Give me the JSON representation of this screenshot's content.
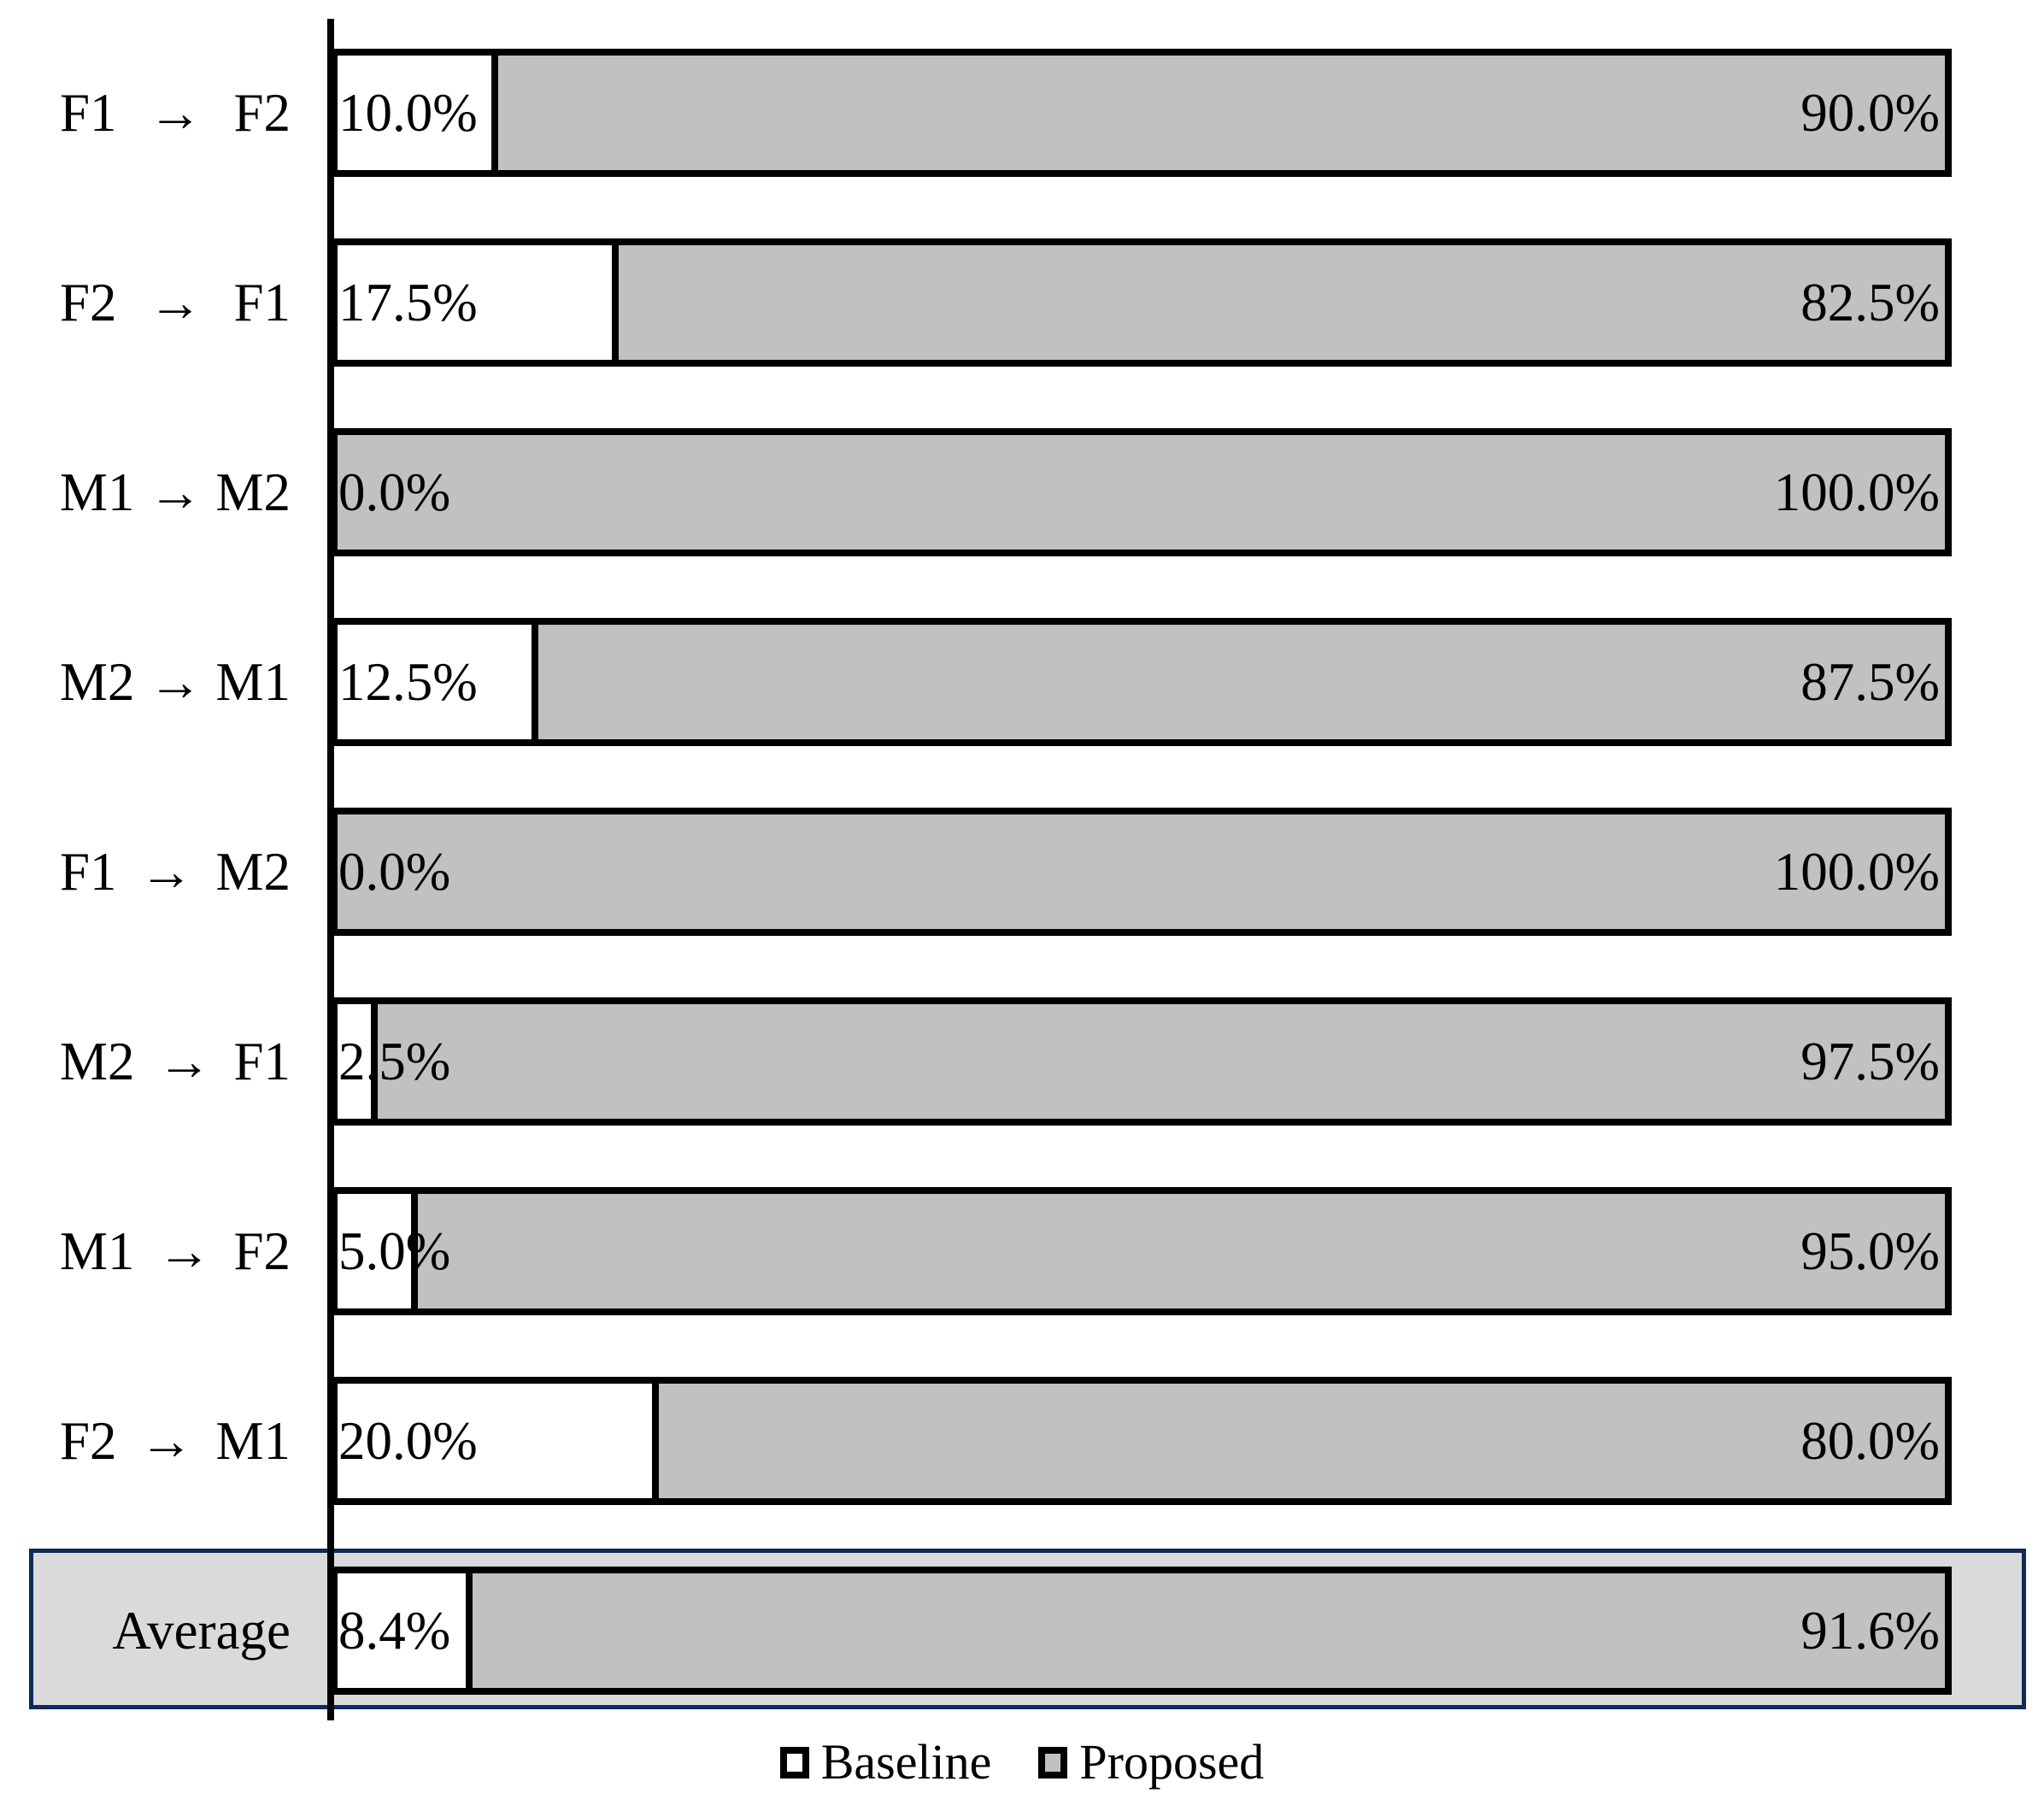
{
  "chart_data": {
    "type": "bar",
    "orientation": "horizontal",
    "stacked": true,
    "value_unit": "percent",
    "xlim": [
      0,
      100
    ],
    "grid": false,
    "legend_position": "bottom",
    "arrow_glyph": "→",
    "categories": [
      "F1 → F2",
      "F2 → F1",
      "M1 → M2",
      "M2 → M1",
      "F1 → M2",
      "M2 → F1",
      "M1 → F2",
      "F2 → M1",
      "Average"
    ],
    "series": [
      {
        "name": "Baseline",
        "color": "#FFFFFF",
        "values": [
          10.0,
          17.5,
          0.0,
          12.5,
          0.0,
          2.5,
          5.0,
          20.0,
          8.4
        ],
        "labels": [
          "10.0%",
          "17.5%",
          "0.0%",
          "12.5%",
          "0.0%",
          "2.5%",
          "5.0%",
          "20.0%",
          "8.4%"
        ]
      },
      {
        "name": "Proposed",
        "color": "#C1C1C1",
        "values": [
          90.0,
          82.5,
          100.0,
          87.5,
          100.0,
          97.5,
          95.0,
          80.0,
          91.6
        ],
        "labels": [
          "90.0%",
          "82.5%",
          "100.0%",
          "87.5%",
          "100.0%",
          "97.5%",
          "95.0%",
          "80.0%",
          "91.6%"
        ]
      }
    ],
    "highlighted_category": "Average"
  },
  "styles": {
    "background": "#FFFFFF",
    "bar_border": "#000000",
    "axis_line": "#000000",
    "baseline_fill": "#FFFFFF",
    "proposed_fill": "#C1C1C1",
    "highlight_band_fill": "#DADADA",
    "highlight_band_border": "#0D2B55"
  }
}
